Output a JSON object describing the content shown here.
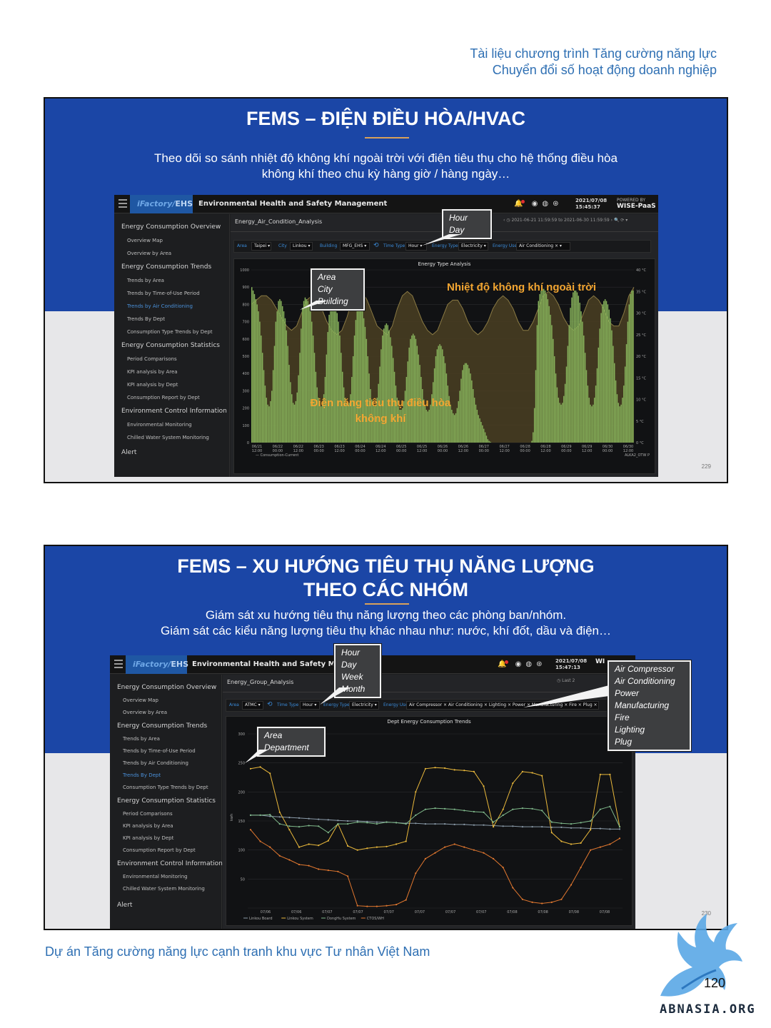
{
  "header": {
    "line1": "Tài liệu chương trình Tăng cường năng lực",
    "line2": "Chuyển đổi số hoạt động doanh nghiệp"
  },
  "slide1": {
    "title": "FEMS – ĐIỆN ĐIỀU HÒA/HVAC",
    "desc_line1": "Theo dõi so sánh nhiệt độ không khí ngoài trời với điện tiêu thụ cho hệ thống điều hòa",
    "desc_line2": "không khí theo chu kỳ hàng giờ / hàng ngày…",
    "slide_number": "229",
    "app": {
      "logo": "iFactory/",
      "logo_bold": "EHS",
      "app_title": "Environmental Health and Safety Management System",
      "date": "2021/07/08",
      "time": "15:45:37",
      "powered_by": "POWERED BY",
      "powered_brand": "WISE-PaaS",
      "tab": "Energy_Air_Condition_Analysis",
      "range": "2021-06-21 11:59:59 to 2021-06-30 11:59:59",
      "filters": {
        "area_label": "Area",
        "area_value": "Taipei",
        "city_label": "City",
        "city_value": "Linkou",
        "building_label": "Building",
        "building_value": "MFG_EHS",
        "time_label": "Time Type",
        "time_value": "Hour",
        "energy_type_label": "Energy Type",
        "energy_type_value": "Electricity",
        "energy_use_label": "Energy Use",
        "energy_use_value": "Air Conditioning ×"
      },
      "chart_title": "Energy Type Analysis",
      "legend_left": "Consumption-Current",
      "legend_right": "ALKA2_OTW P"
    },
    "callouts": {
      "time": [
        "Hour",
        "Day"
      ],
      "location": [
        "Area",
        "City",
        "Building"
      ]
    },
    "overlay_temp": "Nhiệt độ không khí ngoài trời",
    "overlay_power_1": "Điện năng tiêu thụ điều hòa",
    "overlay_power_2": "không khí"
  },
  "slide2": {
    "title_line1": "FEMS – XU HƯỚNG TIÊU THỤ NĂNG LƯỢNG",
    "title_line2": "THEO CÁC NHÓM",
    "desc_line1": "Giám sát xu hướng tiêu thụ năng lượng theo các phòng ban/nhóm.",
    "desc_line2": "Giám sát các kiểu năng lượng tiêu thụ khác nhau như: nước, khí đốt, dầu và điện…",
    "slide_number": "230",
    "app": {
      "logo": "iFactory/",
      "logo_bold": "EHS",
      "app_title": "Environmental Health and Safety Management",
      "date": "2021/07/08",
      "time": "15:47:13",
      "powered_brand": "WI",
      "tab": "Energy_Group_Analysis",
      "range": "Last 2",
      "filters": {
        "area_label": "Area",
        "area_value": "ATMC",
        "time_label": "Time Type",
        "time_value": "Hour",
        "energy_type_label": "Energy Type",
        "energy_type_value": "Electricity",
        "energy_use_label": "Energy Use",
        "energy_use_value": "Air Compressor ×  Air Conditioning ×  Lighting ×  Power ×  Manufacturing ×  Fire ×  Plug ×"
      },
      "chart_title": "Dept Energy Consumption Trends",
      "y_axis_label": "kwh"
    },
    "callouts": {
      "time": [
        "Hour",
        "Day",
        "Week",
        "Month"
      ],
      "location": [
        "Area",
        "Department"
      ],
      "energy_use": [
        "Air Compressor",
        "Air Conditioning",
        "Power",
        "Manufacturing",
        "Fire",
        "Lighting",
        "Plug"
      ]
    }
  },
  "sidebar": {
    "sec1": "Energy Consumption Overview",
    "sec1_items": [
      "Overview Map",
      "Overview by Area"
    ],
    "sec2": "Energy Consumption Trends",
    "sec2_items": [
      "Trends by Area",
      "Trends by Time-of-Use Period",
      "Trends by Air Conditioning",
      "Trends By Dept",
      "Consumption Type Trends by Dept"
    ],
    "sec3": "Energy Consumption Statistics",
    "sec3_items": [
      "Period Comparisons",
      "KPI analysis by Area",
      "KPI analysis by Dept",
      "Consumption Report by Dept"
    ],
    "sec4": "Environment Control Information",
    "sec4_items": [
      "Environmental Monitoring",
      "Chilled Water System Monitoring"
    ],
    "alert": "Alert"
  },
  "footer": {
    "text": "Dự án Tăng cường năng lực cạnh tranh khu vực Tư nhân Việt Nam",
    "page": "120",
    "watermark": "ABNASIA.ORG"
  },
  "chart_data": [
    {
      "type": "bar",
      "title": "Energy Type Analysis",
      "x_ticks": [
        "06/21 12:00",
        "06/22 00:00",
        "06/22 12:00",
        "06/23 00:00",
        "06/23 12:00",
        "06/24 00:00",
        "06/24 12:00",
        "06/25 00:00",
        "06/25 12:00",
        "06/26 00:00",
        "06/26 12:00",
        "06/27 00:00",
        "06/27 12:00",
        "06/28 00:00",
        "06/28 12:00",
        "06/29 00:00",
        "06/29 12:00",
        "06/30 00:00",
        "06/30 12:00"
      ],
      "y_ticks_left": [
        0,
        100,
        200,
        300,
        400,
        500,
        600,
        700,
        800,
        900,
        1000
      ],
      "y_ticks_right": [
        "0 °C",
        "5 °C",
        "10 °C",
        "15 °C",
        "20 °C",
        "25 °C",
        "30 °C",
        "35 °C",
        "40 °C"
      ],
      "ylim": [
        0,
        1000
      ],
      "y2lim": [
        0,
        40
      ],
      "series": [
        {
          "name": "Consumption-Current",
          "kind": "bar",
          "color": "#86b15a",
          "values": [
            900,
            880,
            860,
            830,
            800,
            760,
            700,
            620,
            520,
            420,
            330,
            260,
            220,
            210,
            240,
            300,
            420,
            560,
            700,
            760,
            820,
            830,
            820,
            790,
            760,
            720,
            650,
            560,
            450,
            350,
            280,
            230,
            220,
            240,
            290,
            390,
            520,
            660,
            780,
            820,
            840,
            830,
            820,
            790,
            760,
            700,
            620,
            520,
            410,
            320,
            260,
            220,
            210,
            230,
            280,
            380,
            510,
            640,
            740,
            790,
            810,
            820,
            810,
            790,
            750,
            700,
            620,
            520,
            410,
            320,
            260,
            230,
            220,
            230,
            280,
            380,
            500,
            620,
            710,
            760,
            780,
            790,
            780,
            760,
            720,
            670,
            600,
            500,
            400,
            310,
            250,
            220,
            210,
            220,
            260,
            340,
            440,
            540,
            620,
            660,
            680,
            690,
            680,
            650,
            610,
            560,
            490,
            410,
            330,
            260,
            210,
            190,
            190,
            200,
            240,
            300,
            380,
            470,
            550,
            600,
            620,
            630,
            620,
            600,
            560,
            510,
            450,
            380,
            310,
            250,
            210,
            190,
            180,
            190,
            220,
            280,
            350,
            430,
            500,
            540,
            560,
            570,
            560,
            540,
            500,
            460,
            400,
            330,
            270,
            220,
            190,
            170,
            160,
            170,
            200,
            240,
            300,
            370,
            420,
            450,
            460,
            460,
            450,
            430,
            400,
            360,
            310,
            260,
            220,
            190,
            160,
            140,
            120,
            100,
            80,
            60,
            40,
            20,
            10,
            5,
            0,
            0,
            0,
            0,
            0,
            0,
            0,
            0,
            0,
            0,
            0,
            0,
            0,
            0,
            0,
            0,
            0,
            0,
            0,
            0,
            0,
            0,
            0,
            0,
            0,
            0,
            0,
            0,
            0,
            0,
            10,
            60,
            200,
            420,
            680,
            820,
            860,
            880,
            890,
            890,
            880,
            860,
            830,
            790,
            740,
            680,
            600,
            500,
            400,
            320,
            260,
            230,
            220,
            230,
            270,
            340,
            440,
            560,
            680,
            780,
            840,
            870,
            880,
            880,
            870,
            850,
            810,
            760,
            700,
            620,
            520,
            420,
            330,
            260,
            220,
            210,
            220,
            260,
            330,
            430,
            550,
            660,
            750,
            800,
            820,
            830,
            820,
            800,
            770,
            720,
            650,
            560,
            460,
            360,
            280,
            230,
            210,
            220,
            260,
            330,
            440,
            570,
            700,
            800,
            860,
            880,
            880
          ]
        },
        {
          "name": "Outdoor temperature",
          "kind": "area",
          "color": "#6b5a2c",
          "values_celsius": [
            32,
            33,
            34,
            34,
            33,
            31,
            29,
            27,
            26,
            27,
            30,
            33,
            34,
            33,
            31,
            28,
            26,
            25,
            26,
            29,
            33,
            35,
            35,
            33,
            30,
            27,
            26,
            25,
            27,
            31,
            34,
            35,
            34,
            31,
            28,
            26,
            25,
            26,
            29,
            32,
            33,
            33,
            31,
            28,
            26,
            25,
            26,
            28,
            31,
            33,
            34,
            33,
            31,
            28,
            26,
            26,
            28,
            31,
            34,
            35,
            34,
            32,
            29,
            27,
            26,
            27,
            30,
            33,
            34,
            33,
            31,
            28,
            27,
            27,
            30,
            34,
            36
          ]
        }
      ]
    },
    {
      "type": "line",
      "title": "Dept Energy Consumption Trends",
      "ylabel": "kwh",
      "x_ticks": [
        "07/06",
        "07/06",
        "07/07",
        "07/07",
        "07/07",
        "07/07",
        "07/07",
        "07/07",
        "07/08",
        "07/08",
        "07/08",
        "07/08"
      ],
      "y_ticks": [
        0,
        50,
        100,
        150,
        200,
        250,
        300
      ],
      "ylim": [
        0,
        300
      ],
      "series": [
        {
          "name": "Linkou Board",
          "color": "#8a9aa8",
          "values": [
            160,
            160,
            158,
            157,
            156,
            155,
            154,
            153,
            152,
            151,
            150,
            150,
            149,
            148,
            148,
            147,
            146,
            146,
            145,
            145,
            145,
            144,
            144,
            143,
            143,
            142,
            141,
            141,
            140,
            140,
            140,
            139,
            139,
            138,
            138,
            137,
            137,
            136,
            136
          ]
        },
        {
          "name": "Linkou System",
          "color": "#e9b83b",
          "values": [
            240,
            243,
            232,
            165,
            135,
            105,
            110,
            108,
            116,
            145,
            107,
            100,
            103,
            105,
            106,
            110,
            115,
            200,
            240,
            242,
            241,
            238,
            237,
            235,
            210,
            140,
            170,
            215,
            235,
            233,
            228,
            130,
            115,
            110,
            112,
            135,
            230,
            230,
            140
          ]
        },
        {
          "name": "DongHu System",
          "color": "#7fb88a",
          "values": [
            160,
            160,
            161,
            145,
            141,
            140,
            142,
            141,
            130,
            145,
            145,
            148,
            147,
            145,
            148,
            147,
            145,
            160,
            170,
            172,
            171,
            170,
            168,
            166,
            165,
            148,
            160,
            170,
            172,
            171,
            168,
            148,
            146,
            145,
            147,
            150,
            170,
            175,
            140
          ]
        },
        {
          "name": "CTOS/WH",
          "color": "#e0772f",
          "values": [
            135,
            115,
            105,
            90,
            83,
            75,
            73,
            67,
            65,
            63,
            55,
            4,
            3,
            3,
            4,
            6,
            14,
            60,
            85,
            95,
            105,
            110,
            105,
            100,
            95,
            85,
            70,
            35,
            15,
            10,
            8,
            10,
            15,
            40,
            70,
            100,
            105,
            110,
            120
          ]
        }
      ]
    }
  ]
}
